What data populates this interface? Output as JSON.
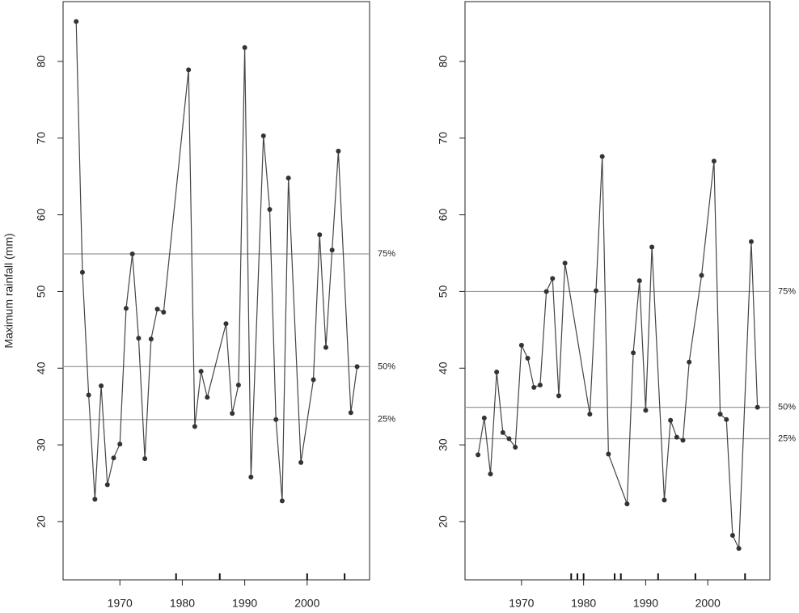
{
  "chart_data": [
    {
      "type": "line",
      "ylabel": "Maximum rainfall (mm)",
      "x": [
        1963,
        1964,
        1965,
        1966,
        1967,
        1968,
        1969,
        1970,
        1971,
        1972,
        1973,
        1974,
        1975,
        1976,
        1977,
        1981,
        1982,
        1983,
        1984,
        1987,
        1988,
        1989,
        1990,
        1991,
        1993,
        1994,
        1995,
        1996,
        1997,
        1999,
        2001,
        2002,
        2003,
        2004,
        2005,
        2007,
        2008
      ],
      "series": [
        {
          "color": "#444444",
          "values": [
            85.2,
            52.5,
            36.5,
            22.9,
            37.7,
            24.8,
            28.3,
            30.1,
            47.8,
            54.9,
            43.9,
            28.2,
            43.8,
            47.7,
            47.3,
            78.9,
            32.4,
            39.6,
            36.2,
            45.8,
            34.1,
            37.8,
            81.8,
            25.8,
            70.3,
            60.7,
            33.3,
            22.7,
            64.8,
            27.7,
            38.5,
            57.4,
            42.7,
            55.4,
            68.3,
            34.2,
            40.2
          ]
        }
      ],
      "hlines": [
        {
          "value": 54.9,
          "label": "75%"
        },
        {
          "value": 40.2,
          "label": "50%"
        },
        {
          "value": 33.3,
          "label": "25%"
        }
      ],
      "rug": [
        1979,
        1986,
        2000,
        2006
      ],
      "xlim": [
        1960.9,
        2010
      ],
      "xticks": [
        1970,
        1980,
        1990,
        2000
      ],
      "ylim": [
        12.4,
        87.8
      ],
      "yticks": [
        20,
        30,
        40,
        50,
        60,
        70,
        80
      ]
    },
    {
      "type": "line",
      "x": [
        1963,
        1964,
        1965,
        1966,
        1967,
        1968,
        1969,
        1970,
        1971,
        1972,
        1973,
        1974,
        1975,
        1976,
        1977,
        1981,
        1982,
        1983,
        1984,
        1987,
        1988,
        1989,
        1990,
        1991,
        1993,
        1994,
        1995,
        1996,
        1997,
        1999,
        2001,
        2002,
        2003,
        2004,
        2005,
        2007,
        2008
      ],
      "series": [
        {
          "color": "#444444",
          "values": [
            28.7,
            33.5,
            26.2,
            39.5,
            31.6,
            30.8,
            29.7,
            43.0,
            41.3,
            37.5,
            37.8,
            50.0,
            51.7,
            36.4,
            53.7,
            34.0,
            50.1,
            67.6,
            28.8,
            22.3,
            42.0,
            51.4,
            34.5,
            55.8,
            22.8,
            33.2,
            31.0,
            30.6,
            40.8,
            52.1,
            67.0,
            34.0,
            33.3,
            18.2,
            16.5,
            56.5,
            34.9
          ]
        }
      ],
      "hlines": [
        {
          "value": 50.0,
          "label": "75%"
        },
        {
          "value": 34.9,
          "label": "50%"
        },
        {
          "value": 30.8,
          "label": "25%"
        }
      ],
      "rug": [
        1978,
        1979,
        1980,
        1985,
        1986,
        1992,
        1998,
        2006
      ],
      "xlim": [
        1960.9,
        2010
      ],
      "xticks": [
        1970,
        1980,
        1990,
        2000
      ],
      "ylim": [
        12.4,
        87.8
      ],
      "yticks": [
        20,
        30,
        40,
        50,
        60,
        70,
        80
      ]
    }
  ]
}
